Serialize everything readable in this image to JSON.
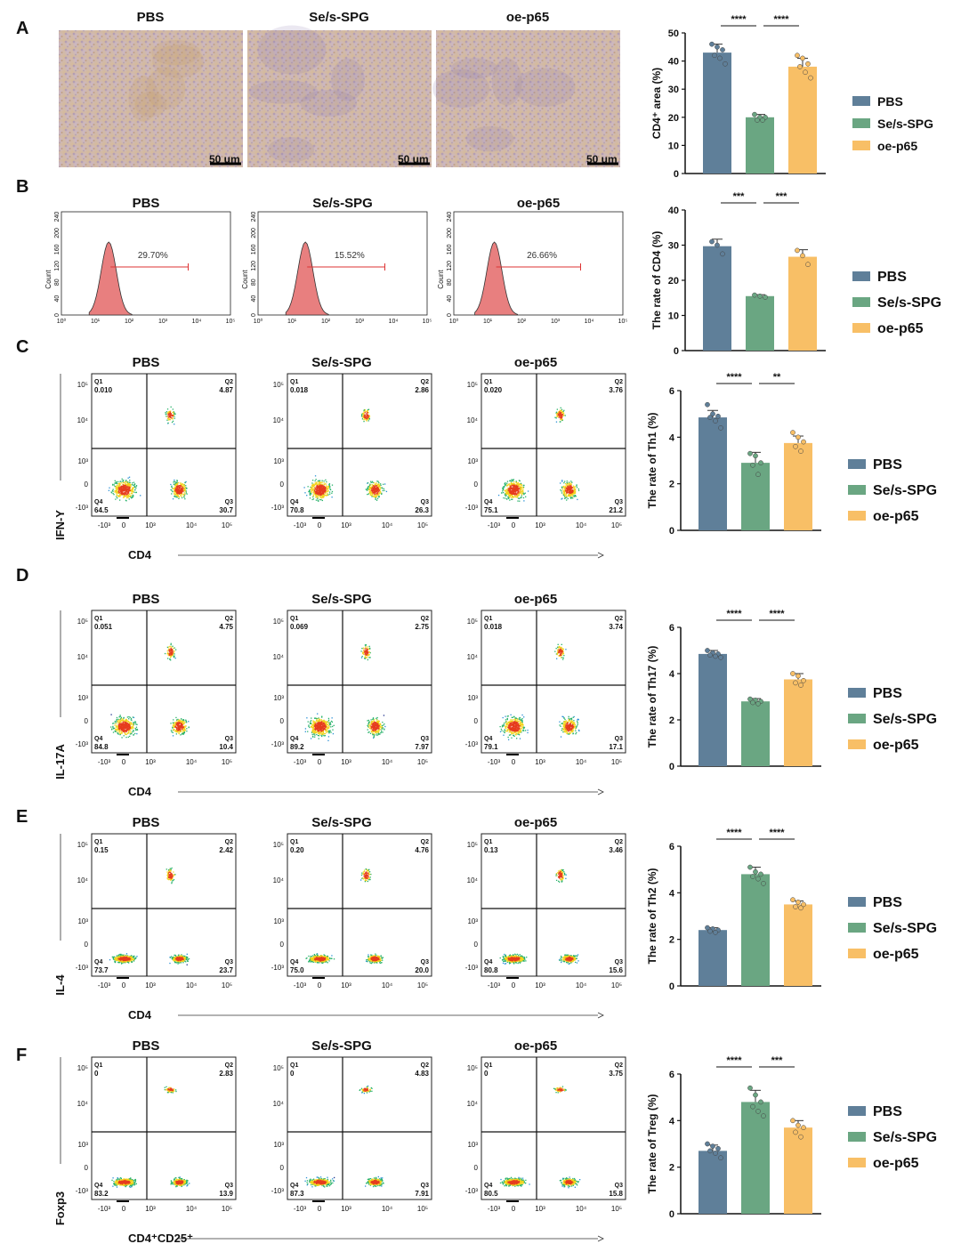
{
  "colors": {
    "pbs": "#5f7f99",
    "sespg": "#6aa682",
    "oep65": "#f8bf66",
    "histo": "#e87f7f",
    "ihc_bg": "#d9c3a6"
  },
  "legend": [
    "PBS",
    "Se/s-SPG",
    "oe-p65"
  ],
  "panelA": {
    "letter": "A",
    "titles": [
      "PBS",
      "Se/s-SPG",
      "oe-p65"
    ],
    "scalebar": "50 um"
  },
  "panelB": {
    "letter": "B",
    "titles": [
      "PBS",
      "Se/s-SPG",
      "oe-p65"
    ],
    "gate_percents": [
      "29.70%",
      "15.52%",
      "26.66%"
    ],
    "ylabel": "Count",
    "yticks": [
      "0",
      "40",
      "80",
      "120",
      "160",
      "200",
      "240"
    ],
    "xticks": [
      "10⁰",
      "10¹",
      "10²",
      "10³",
      "10⁴",
      "10⁵"
    ]
  },
  "flow": {
    "axis_ticks_x": [
      "-10³",
      "0",
      "10³",
      "10⁴",
      "10⁵"
    ],
    "axis_ticks_y": [
      "10⁵",
      "10⁴",
      "10³",
      "0",
      "-10³"
    ],
    "quadrant_names": [
      "Q1",
      "Q2",
      "Q3",
      "Q4"
    ],
    "panels": [
      {
        "letter": "C",
        "ylabel": "IFN-Y",
        "xlabel": "CD4",
        "titles": [
          "PBS",
          "Se/s-SPG",
          "oe-p65"
        ],
        "quadrants": [
          [
            "0.010",
            "4.87",
            "30.7",
            "64.5"
          ],
          [
            "0.018",
            "2.86",
            "26.3",
            "70.8"
          ],
          [
            "0.020",
            "3.76",
            "21.2",
            "75.1"
          ]
        ]
      },
      {
        "letter": "D",
        "ylabel": "IL-17A",
        "xlabel": "CD4",
        "titles": [
          "PBS",
          "Se/s-SPG",
          "oe-p65"
        ],
        "quadrants": [
          [
            "0.051",
            "4.75",
            "10.4",
            "84.8"
          ],
          [
            "0.069",
            "2.75",
            "7.97",
            "89.2"
          ],
          [
            "0.018",
            "3.74",
            "17.1",
            "79.1"
          ]
        ]
      },
      {
        "letter": "E",
        "ylabel": "IL-4",
        "xlabel": "CD4",
        "titles": [
          "PBS",
          "Se/s-SPG",
          "oe-p65"
        ],
        "quadrants": [
          [
            "0.15",
            "2.42",
            "23.7",
            "73.7"
          ],
          [
            "0.20",
            "4.76",
            "20.0",
            "75.0"
          ],
          [
            "0.13",
            "3.46",
            "15.6",
            "80.8"
          ]
        ]
      },
      {
        "letter": "F",
        "ylabel": "Foxp3",
        "xlabel": "CD4⁺CD25⁺",
        "titles": [
          "PBS",
          "Se/s-SPG",
          "oe-p65"
        ],
        "quadrants": [
          [
            "0",
            "2.83",
            "13.9",
            "83.2"
          ],
          [
            "0",
            "4.83",
            "7.91",
            "87.3"
          ],
          [
            "0",
            "3.75",
            "15.8",
            "80.5"
          ]
        ]
      }
    ]
  },
  "chart_data": [
    {
      "type": "bar",
      "categories": [
        "PBS",
        "Se/s-SPG",
        "oe-p65"
      ],
      "values": [
        43,
        20,
        38
      ],
      "errors": [
        3,
        1,
        3
      ],
      "points": [
        [
          46,
          45,
          44,
          42,
          41,
          39
        ],
        [
          21,
          20,
          20,
          19,
          19
        ],
        [
          42,
          41,
          39,
          38,
          36,
          34
        ]
      ],
      "ylabel": "CD4⁺ area (%)",
      "ylim": [
        0,
        50
      ],
      "yticks": [
        0,
        10,
        20,
        30,
        40,
        50
      ],
      "significance": [
        "****",
        "****"
      ]
    },
    {
      "type": "bar",
      "categories": [
        "PBS",
        "Se/s-SPG",
        "oe-p65"
      ],
      "values": [
        29.7,
        15.5,
        26.7
      ],
      "errors": [
        2,
        0.4,
        2
      ],
      "points": [
        [
          31,
          30,
          27.5
        ],
        [
          15.8,
          15.5,
          15.2
        ],
        [
          28.5,
          27,
          24.5
        ]
      ],
      "ylabel": "The rate of CD4 (%)",
      "ylim": [
        0,
        40
      ],
      "yticks": [
        0,
        10,
        20,
        30,
        40
      ],
      "significance": [
        "***",
        "***"
      ]
    },
    {
      "type": "bar",
      "categories": [
        "PBS",
        "Se/s-SPG",
        "oe-p65"
      ],
      "values": [
        4.85,
        2.9,
        3.75
      ],
      "errors": [
        0.3,
        0.45,
        0.3
      ],
      "points": [
        [
          5.4,
          5.0,
          4.9,
          4.85,
          4.7,
          4.4
        ],
        [
          3.3,
          3.2,
          2.9,
          2.8,
          2.4
        ],
        [
          4.2,
          4.0,
          3.8,
          3.6,
          3.4
        ]
      ],
      "ylabel": "The rate of Th1 (%)",
      "ylim": [
        0,
        6
      ],
      "yticks": [
        0,
        2,
        4,
        6
      ],
      "significance": [
        "****",
        "**"
      ]
    },
    {
      "type": "bar",
      "categories": [
        "PBS",
        "Se/s-SPG",
        "oe-p65"
      ],
      "values": [
        4.85,
        2.8,
        3.75
      ],
      "errors": [
        0.15,
        0.12,
        0.25
      ],
      "points": [
        [
          5.0,
          4.9,
          4.85,
          4.8,
          4.75,
          4.7
        ],
        [
          2.9,
          2.85,
          2.8,
          2.75,
          2.7
        ],
        [
          4.0,
          3.9,
          3.7,
          3.6,
          3.5
        ]
      ],
      "ylabel": "The rate of Th17 (%)",
      "ylim": [
        0,
        6
      ],
      "yticks": [
        0,
        2,
        4,
        6
      ],
      "significance": [
        "****",
        "****"
      ]
    },
    {
      "type": "bar",
      "categories": [
        "PBS",
        "Se/s-SPG",
        "oe-p65"
      ],
      "values": [
        2.4,
        4.8,
        3.5
      ],
      "errors": [
        0.1,
        0.3,
        0.15
      ],
      "points": [
        [
          2.5,
          2.45,
          2.4,
          2.35,
          2.3
        ],
        [
          5.1,
          4.9,
          4.8,
          4.7,
          4.6,
          4.4
        ],
        [
          3.7,
          3.6,
          3.5,
          3.4,
          3.35
        ]
      ],
      "ylabel": "The rate of Th2 (%)",
      "ylim": [
        0,
        6
      ],
      "yticks": [
        0,
        2,
        4,
        6
      ],
      "significance": [
        "****",
        "****"
      ]
    },
    {
      "type": "bar",
      "categories": [
        "PBS",
        "Se/s-SPG",
        "oe-p65"
      ],
      "values": [
        2.7,
        4.8,
        3.7
      ],
      "errors": [
        0.25,
        0.5,
        0.3
      ],
      "points": [
        [
          3.0,
          2.9,
          2.8,
          2.7,
          2.6,
          2.4
        ],
        [
          5.4,
          5.1,
          4.8,
          4.6,
          4.4,
          4.2
        ],
        [
          4.0,
          3.8,
          3.7,
          3.5,
          3.3
        ]
      ],
      "ylabel": "The rate of Treg (%)",
      "ylim": [
        0,
        6
      ],
      "yticks": [
        0,
        2,
        4,
        6
      ],
      "significance": [
        "****",
        "***"
      ]
    }
  ]
}
